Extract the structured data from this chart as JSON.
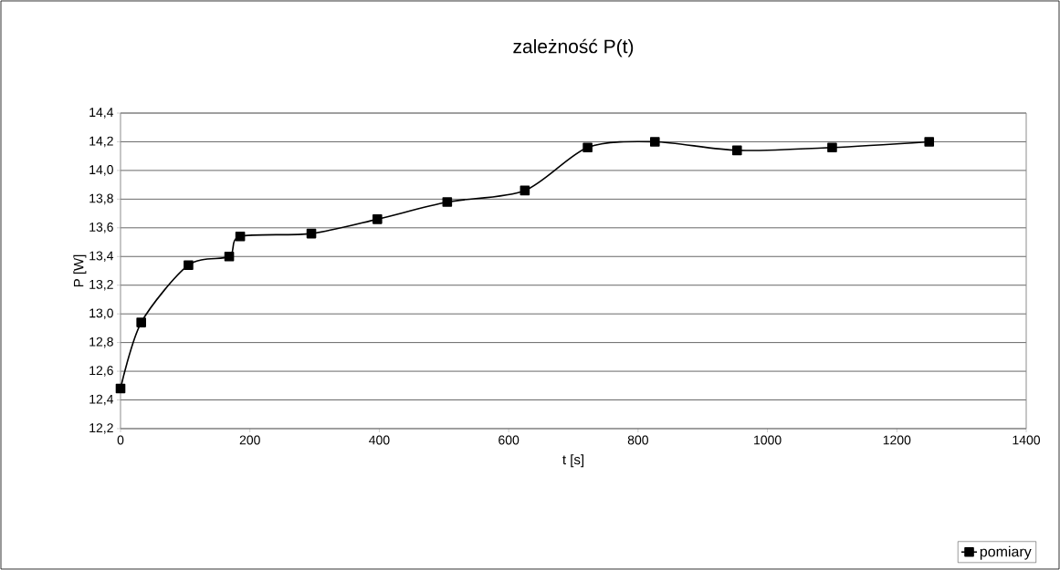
{
  "chart_data": {
    "type": "line",
    "title": "zależność P(t)",
    "xlabel": "t [s]",
    "ylabel": "P [W]",
    "x": [
      0,
      32,
      105,
      168,
      185,
      295,
      397,
      505,
      625,
      722,
      826,
      953,
      1100,
      1250
    ],
    "series": [
      {
        "name": "pomiary",
        "color": "#000000",
        "values": [
          12.48,
          12.94,
          13.34,
          13.4,
          13.54,
          13.56,
          13.66,
          13.78,
          13.86,
          14.16,
          14.2,
          14.14,
          14.16,
          14.2
        ]
      }
    ],
    "xlim": [
      0,
      1400
    ],
    "xticks": [
      0,
      200,
      400,
      600,
      800,
      1000,
      1200,
      1400
    ],
    "ylim": [
      12.2,
      14.4
    ],
    "yticks": [
      {
        "value": 12.2,
        "label": "12,2"
      },
      {
        "value": 12.4,
        "label": "12,4"
      },
      {
        "value": 12.6,
        "label": "12,6"
      },
      {
        "value": 12.8,
        "label": "12,8"
      },
      {
        "value": 13.0,
        "label": "13,0"
      },
      {
        "value": 13.2,
        "label": "13,2"
      },
      {
        "value": 13.4,
        "label": "13,4"
      },
      {
        "value": 13.6,
        "label": "13,6"
      },
      {
        "value": 13.8,
        "label": "13,8"
      },
      {
        "value": 14.0,
        "label": "14,0"
      },
      {
        "value": 14.2,
        "label": "14,2"
      },
      {
        "value": 14.4,
        "label": "14,4"
      }
    ],
    "grid": "y",
    "legend": "bottom right",
    "marker": "square",
    "line_style": "solid"
  }
}
